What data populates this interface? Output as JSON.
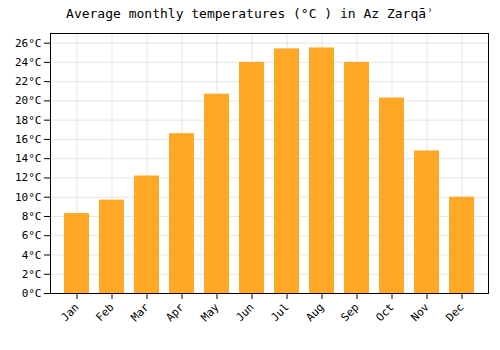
{
  "chart_data": {
    "type": "bar",
    "title": "Average monthly temperatures (°C ) in Az Zarqāʾ",
    "categories": [
      "Jan",
      "Feb",
      "Mar",
      "Apr",
      "May",
      "Jun",
      "Jul",
      "Aug",
      "Sep",
      "Oct",
      "Nov",
      "Dec"
    ],
    "values": [
      8.3,
      9.7,
      12.2,
      16.6,
      20.7,
      24.0,
      25.4,
      25.5,
      24.0,
      20.3,
      14.8,
      10.0
    ],
    "color": "#FFA726",
    "ylim": [
      0,
      27
    ],
    "yticks": [
      {
        "value": 0,
        "label": "0°C"
      },
      {
        "value": 2,
        "label": "2°C"
      },
      {
        "value": 4,
        "label": "4°C"
      },
      {
        "value": 6,
        "label": "6°C"
      },
      {
        "value": 8,
        "label": "8°C"
      },
      {
        "value": 10,
        "label": "10°C"
      },
      {
        "value": 12,
        "label": "12°C"
      },
      {
        "value": 14,
        "label": "14°C"
      },
      {
        "value": 16,
        "label": "16°C"
      },
      {
        "value": 18,
        "label": "18°C"
      },
      {
        "value": 20,
        "label": "20°C"
      },
      {
        "value": 22,
        "label": "22°C"
      },
      {
        "value": 24,
        "label": "24°C"
      },
      {
        "value": 26,
        "label": "26°C"
      }
    ],
    "grid": true
  }
}
